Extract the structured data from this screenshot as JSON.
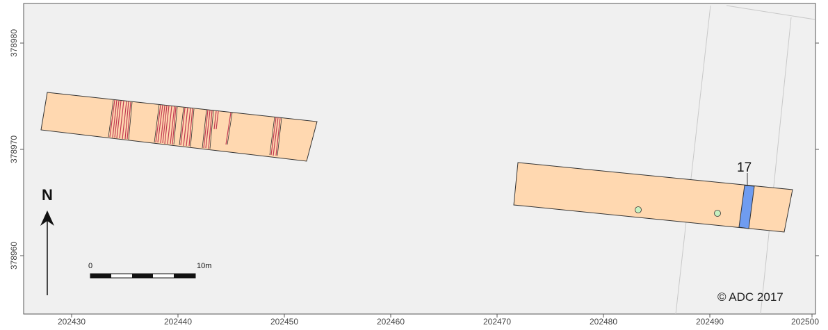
{
  "x_ticks": [
    "202430",
    "202440",
    "202450",
    "202460",
    "202470",
    "202480",
    "202490",
    "202500"
  ],
  "y_ticks": [
    "378980",
    "378970",
    "378960"
  ],
  "feature_label": "17",
  "north_label": "N",
  "scale": {
    "start": "0",
    "end": "10m"
  },
  "credit": "© ADC 2017",
  "colors": {
    "trench": "#ffd8b0",
    "feature": "#6f9cf0",
    "pit": "#c6f0c0",
    "linear": "#c23a52",
    "background": "#f0f0f0"
  }
}
